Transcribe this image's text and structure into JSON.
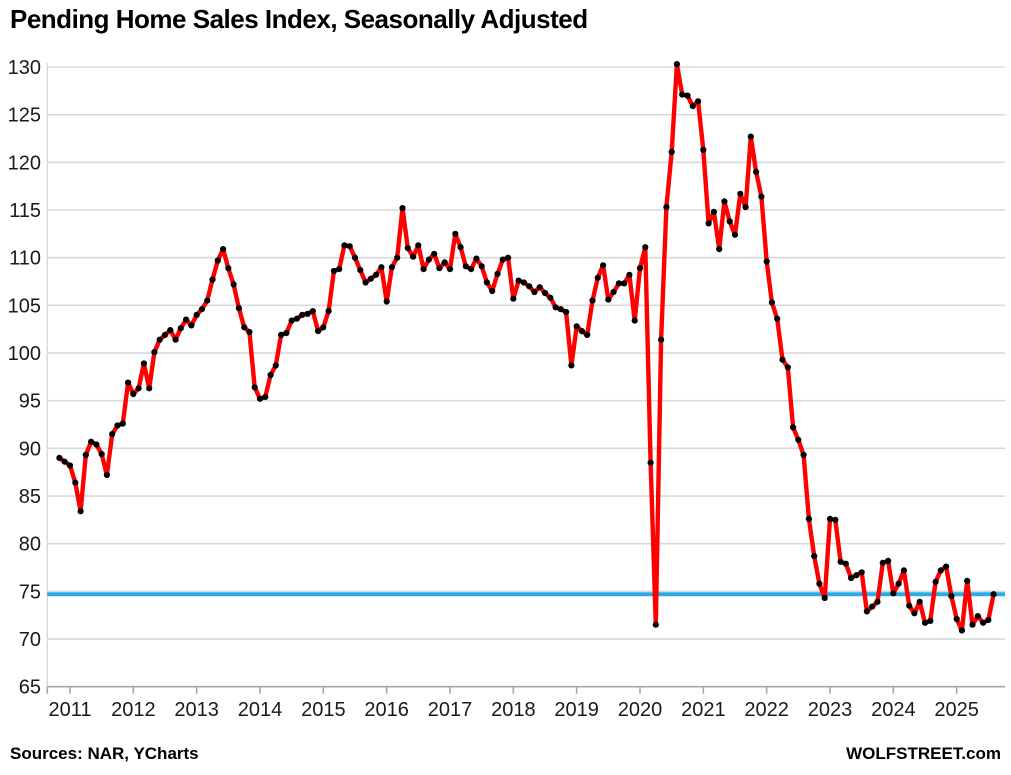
{
  "page": {
    "title": "Pending Home Sales Index, Seasonally Adjusted",
    "source_note": "Sources: NAR, YCharts",
    "watermark": "WOLFSTREET.com"
  },
  "chart_data": {
    "type": "line",
    "title": "Pending Home Sales Index, Seasonally Adjusted",
    "grid": true,
    "legend": false,
    "y_axis": {
      "min": 65,
      "max": 130,
      "tick_step": 5,
      "tick_labels": [
        "65",
        "70",
        "75",
        "80",
        "85",
        "90",
        "95",
        "100",
        "105",
        "110",
        "115",
        "120",
        "125",
        "130"
      ]
    },
    "x_axis": {
      "tick_labels": [
        "2011",
        "2012",
        "2013",
        "2014",
        "2015",
        "2016",
        "2017",
        "2018",
        "2019",
        "2020",
        "2021",
        "2022",
        "2023",
        "2024",
        "2025"
      ]
    },
    "reference_line": {
      "value": 74.7,
      "color": "#2aabe4"
    },
    "series": [
      {
        "name": "Pending Home Sales Index (seasonally adjusted)",
        "color": "#ff0000",
        "marker_color": "#000000",
        "start_month": "2010-11",
        "values": [
          89.0,
          88.6,
          88.2,
          86.4,
          83.4,
          89.3,
          90.7,
          90.4,
          89.4,
          87.2,
          91.5,
          92.4,
          92.6,
          96.9,
          95.7,
          96.3,
          98.9,
          96.3,
          100.1,
          101.4,
          101.9,
          102.4,
          101.4,
          102.6,
          103.5,
          102.9,
          104.0,
          104.6,
          105.5,
          107.7,
          109.7,
          110.9,
          108.9,
          107.2,
          104.7,
          102.7,
          102.2,
          96.4,
          95.2,
          95.4,
          97.7,
          98.7,
          101.9,
          102.1,
          103.4,
          103.6,
          104.0,
          104.1,
          104.4,
          102.3,
          102.7,
          104.4,
          108.6,
          108.8,
          111.3,
          111.2,
          110.0,
          108.7,
          107.4,
          107.8,
          108.2,
          109.0,
          105.4,
          109.0,
          110.0,
          115.2,
          111.0,
          110.1,
          111.3,
          108.8,
          109.8,
          110.4,
          108.9,
          109.5,
          108.8,
          112.5,
          111.1,
          109.1,
          108.8,
          109.9,
          109.1,
          107.4,
          106.5,
          108.3,
          109.8,
          110.0,
          105.7,
          107.6,
          107.4,
          107.0,
          106.4,
          106.9,
          106.3,
          105.8,
          104.8,
          104.6,
          104.3,
          98.7,
          102.8,
          102.3,
          101.9,
          105.5,
          107.9,
          109.2,
          105.6,
          106.4,
          107.3,
          107.3,
          108.2,
          103.4,
          108.9,
          111.1,
          88.5,
          71.5,
          101.4,
          115.3,
          121.1,
          130.3,
          127.1,
          127.0,
          125.9,
          126.4,
          121.3,
          113.6,
          114.8,
          110.9,
          115.9,
          113.8,
          112.4,
          116.7,
          115.3,
          122.7,
          119.0,
          116.4,
          109.6,
          105.3,
          103.6,
          99.3,
          98.5,
          92.2,
          90.9,
          89.3,
          82.6,
          78.7,
          75.8,
          74.3,
          82.6,
          82.5,
          78.1,
          77.9,
          76.4,
          76.7,
          77.0,
          72.9,
          73.4,
          73.9,
          78.0,
          78.2,
          74.8,
          75.8,
          77.2,
          73.5,
          72.7,
          73.9,
          71.7,
          71.9,
          76.0,
          77.2,
          77.6,
          74.5,
          72.1,
          70.9,
          76.1,
          71.5,
          72.4,
          71.7,
          72.0,
          74.7
        ]
      }
    ],
    "colors": {
      "gridline": "#d9d9d9",
      "axis": "#a6a6a6",
      "tick_text": "#1a1a1a"
    }
  }
}
